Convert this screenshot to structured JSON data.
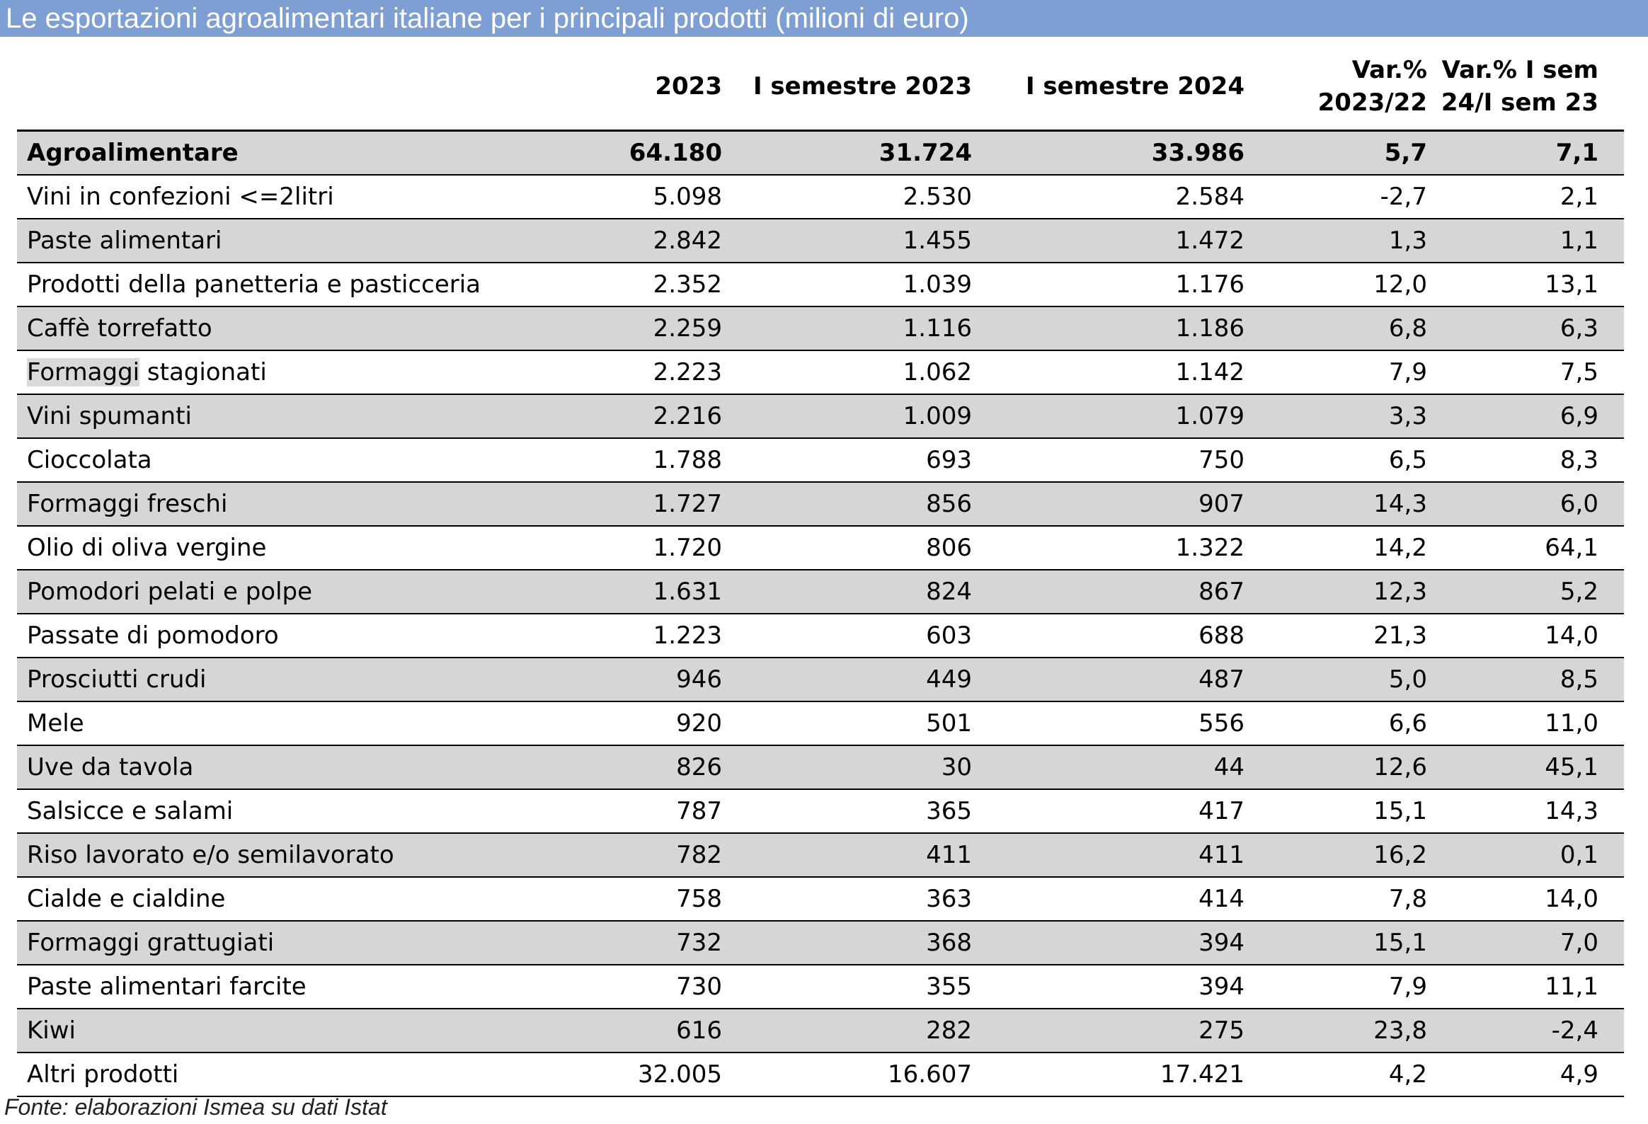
{
  "title": "Le esportazioni agroalimentari italiane per i principali prodotti (milioni di euro)",
  "source": "Fonte: elaborazioni Ismea su dati Istat",
  "colors": {
    "title_bg": "#7e9fd4",
    "row_shade": "#d6d6d6"
  },
  "chart_data": {
    "type": "table",
    "title": "Le esportazioni agroalimentari italiane per i principali prodotti (milioni di euro)",
    "columns": [
      "",
      "2023",
      "I semestre 2023",
      "I semestre 2024",
      "Var.% 2023/22",
      "Var.% I sem 24/I sem 23"
    ],
    "header": {
      "c1": "2023",
      "c2": "I semestre 2023",
      "c3": "I semestre 2024",
      "c4_l1": "Var.%",
      "c4_l2": "2023/22",
      "c5_l1": "Var.% I sem",
      "c5_l2": "24/I sem 23"
    },
    "rows": [
      [
        "Agroalimentare",
        "64.180",
        "31.724",
        "33.986",
        "5,7",
        "7,1"
      ],
      [
        "Vini in confezioni <=2litri",
        "5.098",
        "2.530",
        "2.584",
        "-2,7",
        "2,1"
      ],
      [
        "Paste alimentari",
        "2.842",
        "1.455",
        "1.472",
        "1,3",
        "1,1"
      ],
      [
        "Prodotti della panetteria e pasticceria",
        "2.352",
        "1.039",
        "1.176",
        "12,0",
        "13,1"
      ],
      [
        "Caffè torrefatto",
        "2.259",
        "1.116",
        "1.186",
        "6,8",
        "6,3"
      ],
      [
        "Formaggi stagionati",
        "2.223",
        "1.062",
        "1.142",
        "7,9",
        "7,5"
      ],
      [
        "Vini spumanti",
        "2.216",
        "1.009",
        "1.079",
        "3,3",
        "6,9"
      ],
      [
        "Cioccolata",
        "1.788",
        "693",
        "750",
        "6,5",
        "8,3"
      ],
      [
        "Formaggi freschi",
        "1.727",
        "856",
        "907",
        "14,3",
        "6,0"
      ],
      [
        "Olio di oliva vergine",
        "1.720",
        "806",
        "1.322",
        "14,2",
        "64,1"
      ],
      [
        "Pomodori pelati e polpe",
        "1.631",
        "824",
        "867",
        "12,3",
        "5,2"
      ],
      [
        "Passate di pomodoro",
        "1.223",
        "603",
        "688",
        "21,3",
        "14,0"
      ],
      [
        "Prosciutti crudi",
        "946",
        "449",
        "487",
        "5,0",
        "8,5"
      ],
      [
        "Mele",
        "920",
        "501",
        "556",
        "6,6",
        "11,0"
      ],
      [
        "Uve da tavola",
        "826",
        "30",
        "44",
        "12,6",
        "45,1"
      ],
      [
        "Salsicce e salami",
        "787",
        "365",
        "417",
        "15,1",
        "14,3"
      ],
      [
        "Riso lavorato e/o semilavorato",
        "782",
        "411",
        "411",
        "16,2",
        "0,1"
      ],
      [
        "Cialde e cialdine",
        "758",
        "363",
        "414",
        "7,8",
        "14,0"
      ],
      [
        "Formaggi grattugiati",
        "732",
        "368",
        "394",
        "15,1",
        "7,0"
      ],
      [
        "Paste alimentari farcite",
        "730",
        "355",
        "394",
        "7,9",
        "11,1"
      ],
      [
        "Kiwi",
        "616",
        "282",
        "275",
        "23,8",
        "-2,4"
      ],
      [
        "Altri prodotti",
        "32.005",
        "16.607",
        "17.421",
        "4,2",
        "4,9"
      ]
    ]
  }
}
